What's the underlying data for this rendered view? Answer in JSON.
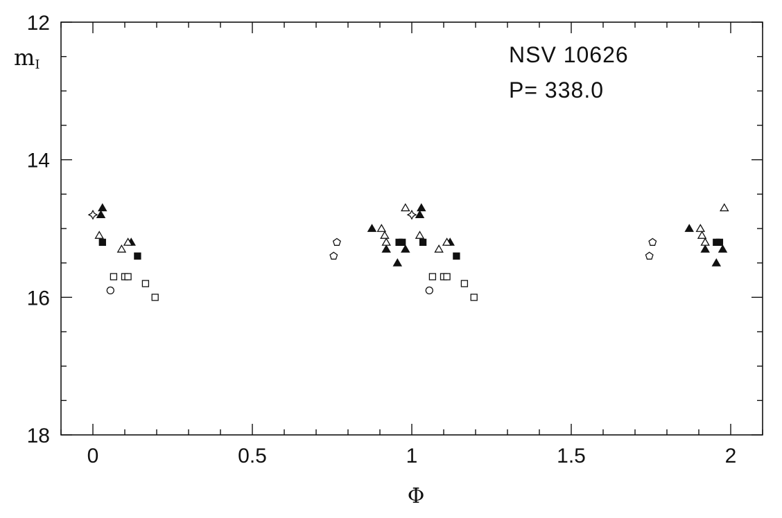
{
  "chart_data": {
    "type": "scatter",
    "title": "",
    "annotations": [
      "NSV 10626",
      "P= 338.0"
    ],
    "xlabel": "Φ",
    "ylabel": "m",
    "ylabel_sub": "I",
    "xlim": [
      -0.1,
      2.1
    ],
    "ylim": [
      12,
      18
    ],
    "y_inverted": true,
    "grid": false,
    "x_ticks": [
      "0",
      "0.5",
      "1",
      "1.5",
      "2"
    ],
    "x_tick_values": [
      0,
      0.5,
      1,
      1.5,
      2
    ],
    "y_ticks": [
      "12",
      "14",
      "16",
      "18"
    ],
    "y_tick_values": [
      12,
      14,
      16,
      18
    ],
    "series": [
      {
        "marker": "triangle-filled",
        "points": [
          [
            0.025,
            14.8
          ],
          [
            0.03,
            14.7
          ],
          [
            0.12,
            15.2
          ],
          [
            0.875,
            15.0
          ],
          [
            0.92,
            15.3
          ],
          [
            0.955,
            15.5
          ],
          [
            0.98,
            15.3
          ],
          [
            1.025,
            14.8
          ],
          [
            1.03,
            14.7
          ],
          [
            1.12,
            15.2
          ],
          [
            1.87,
            15.0
          ],
          [
            1.92,
            15.3
          ],
          [
            1.955,
            15.5
          ],
          [
            1.975,
            15.3
          ]
        ]
      },
      {
        "marker": "triangle-open",
        "points": [
          [
            0.02,
            15.1
          ],
          [
            0.09,
            15.3
          ],
          [
            0.11,
            15.2
          ],
          [
            0.905,
            15.0
          ],
          [
            0.915,
            15.1
          ],
          [
            0.92,
            15.2
          ],
          [
            0.98,
            14.7
          ],
          [
            1.025,
            15.1
          ],
          [
            1.085,
            15.3
          ],
          [
            1.11,
            15.2
          ],
          [
            1.905,
            15.0
          ],
          [
            1.91,
            15.1
          ],
          [
            1.92,
            15.2
          ],
          [
            1.98,
            14.7
          ]
        ]
      },
      {
        "marker": "square-filled",
        "points": [
          [
            0.03,
            15.2
          ],
          [
            0.14,
            15.4
          ],
          [
            0.96,
            15.2
          ],
          [
            0.97,
            15.2
          ],
          [
            1.035,
            15.2
          ],
          [
            1.14,
            15.4
          ],
          [
            1.955,
            15.2
          ],
          [
            1.965,
            15.2
          ]
        ]
      },
      {
        "marker": "square-open",
        "points": [
          [
            0.065,
            15.7
          ],
          [
            0.1,
            15.7
          ],
          [
            0.11,
            15.7
          ],
          [
            0.165,
            15.8
          ],
          [
            0.195,
            16.0
          ],
          [
            1.065,
            15.7
          ],
          [
            1.1,
            15.7
          ],
          [
            1.11,
            15.7
          ],
          [
            1.165,
            15.8
          ],
          [
            1.195,
            16.0
          ]
        ]
      },
      {
        "marker": "circle-open",
        "points": [
          [
            0.055,
            15.9
          ],
          [
            1.055,
            15.9
          ]
        ]
      },
      {
        "marker": "pentagon-open",
        "points": [
          [
            0.755,
            15.4
          ],
          [
            0.765,
            15.2
          ],
          [
            1.745,
            15.4
          ],
          [
            1.755,
            15.2
          ]
        ]
      },
      {
        "marker": "star-open",
        "points": [
          [
            0.0,
            14.8
          ],
          [
            1.0,
            14.8
          ]
        ]
      }
    ]
  }
}
